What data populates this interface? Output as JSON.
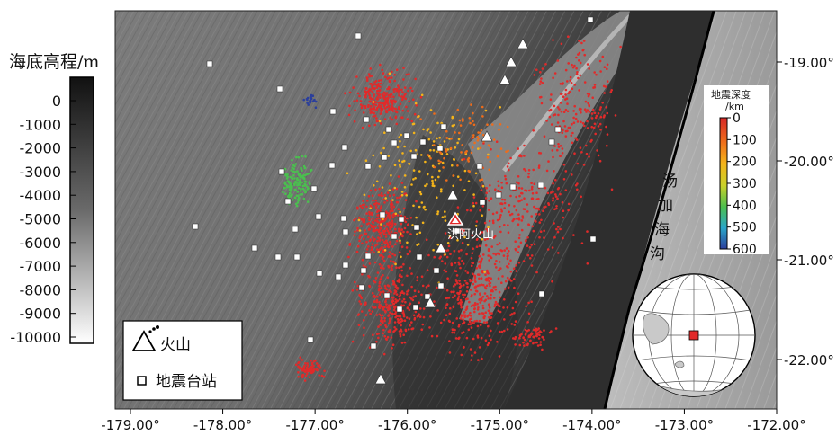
{
  "elevation_bar": {
    "title": "海底高程/m",
    "ticks": [
      "0",
      "-1000",
      "-2000",
      "-3000",
      "-4000",
      "-5000",
      "-6000",
      "-7000",
      "-8000",
      "-9000",
      "-10000"
    ]
  },
  "depth_bar": {
    "title_line1": "地震深度",
    "title_line2": "/km",
    "ticks": [
      "0",
      "100",
      "200",
      "300",
      "400",
      "500",
      "600"
    ],
    "colors": [
      "#d62828",
      "#ef6c1a",
      "#f4b41a",
      "#c9d12a",
      "#4bbf4f",
      "#2aa6c9",
      "#2b3f9c"
    ]
  },
  "map": {
    "x_ticks": [
      "-179.00°",
      "-178.00°",
      "-177.00°",
      "-176.00°",
      "-175.00°",
      "-174.00°",
      "-173.00°",
      "-172.00°"
    ],
    "y_ticks": [
      "-19.00°",
      "-20.00°",
      "-21.00°",
      "-22.00°"
    ],
    "volcano_label": "洪阿火山",
    "trench_label": [
      "汤",
      "加",
      "海",
      "沟"
    ],
    "trench_color": "#000000"
  },
  "legend": {
    "volcano_label": "火山",
    "station_label": "地震台站"
  },
  "colors": {
    "quake_shallow": "#e12a2a",
    "highlight_volcano": "#e12a2a",
    "inset_marker": "#e12a2a"
  }
}
